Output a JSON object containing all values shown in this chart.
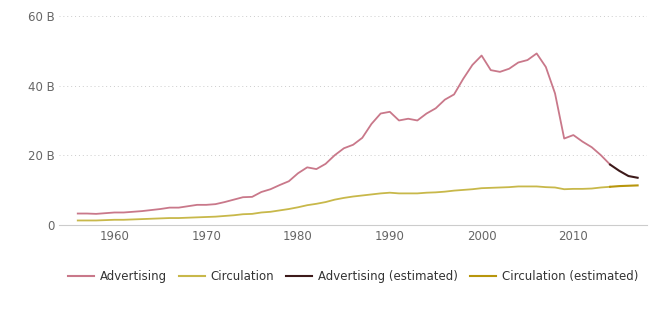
{
  "advertising": {
    "years": [
      1956,
      1957,
      1958,
      1959,
      1960,
      1961,
      1962,
      1963,
      1964,
      1965,
      1966,
      1967,
      1968,
      1969,
      1970,
      1971,
      1972,
      1973,
      1974,
      1975,
      1976,
      1977,
      1978,
      1979,
      1980,
      1981,
      1982,
      1983,
      1984,
      1985,
      1986,
      1987,
      1988,
      1989,
      1990,
      1991,
      1992,
      1993,
      1994,
      1995,
      1996,
      1997,
      1998,
      1999,
      2000,
      2001,
      2002,
      2003,
      2004,
      2005,
      2006,
      2007,
      2008,
      2009,
      2010,
      2011,
      2012,
      2013,
      2014
    ],
    "values": [
      3.2,
      3.2,
      3.1,
      3.3,
      3.5,
      3.5,
      3.7,
      3.9,
      4.2,
      4.5,
      4.9,
      4.9,
      5.3,
      5.7,
      5.7,
      5.9,
      6.5,
      7.2,
      7.9,
      8.0,
      9.4,
      10.2,
      11.4,
      12.5,
      14.8,
      16.5,
      16.0,
      17.5,
      20.0,
      22.0,
      23.0,
      25.0,
      29.0,
      32.0,
      32.5,
      30.0,
      30.5,
      30.0,
      32.0,
      33.5,
      36.0,
      37.5,
      42.0,
      46.0,
      48.7,
      44.5,
      44.0,
      44.9,
      46.7,
      47.4,
      49.3,
      45.4,
      37.8,
      24.8,
      25.8,
      23.9,
      22.3,
      20.0,
      17.3
    ],
    "color": "#c9788a"
  },
  "circulation": {
    "years": [
      1956,
      1957,
      1958,
      1959,
      1960,
      1961,
      1962,
      1963,
      1964,
      1965,
      1966,
      1967,
      1968,
      1969,
      1970,
      1971,
      1972,
      1973,
      1974,
      1975,
      1976,
      1977,
      1978,
      1979,
      1980,
      1981,
      1982,
      1983,
      1984,
      1985,
      1986,
      1987,
      1988,
      1989,
      1990,
      1991,
      1992,
      1993,
      1994,
      1995,
      1996,
      1997,
      1998,
      1999,
      2000,
      2001,
      2002,
      2003,
      2004,
      2005,
      2006,
      2007,
      2008,
      2009,
      2010,
      2011,
      2012,
      2013,
      2014
    ],
    "values": [
      1.2,
      1.2,
      1.2,
      1.3,
      1.4,
      1.4,
      1.5,
      1.6,
      1.7,
      1.8,
      1.9,
      1.9,
      2.0,
      2.1,
      2.2,
      2.3,
      2.5,
      2.7,
      3.0,
      3.1,
      3.5,
      3.7,
      4.1,
      4.5,
      5.0,
      5.6,
      6.0,
      6.5,
      7.2,
      7.7,
      8.1,
      8.4,
      8.7,
      9.0,
      9.2,
      9.0,
      9.0,
      9.0,
      9.2,
      9.3,
      9.5,
      9.8,
      10.0,
      10.2,
      10.5,
      10.6,
      10.7,
      10.8,
      11.0,
      11.0,
      11.0,
      10.8,
      10.7,
      10.2,
      10.3,
      10.3,
      10.4,
      10.7,
      10.9
    ],
    "color": "#c8b84a"
  },
  "advertising_estimated": {
    "years": [
      2014,
      2015,
      2016,
      2017
    ],
    "values": [
      17.3,
      15.5,
      14.0,
      13.5
    ],
    "color": "#3d1a1a"
  },
  "circulation_estimated": {
    "years": [
      2014,
      2015,
      2016,
      2017
    ],
    "values": [
      10.9,
      11.1,
      11.2,
      11.3
    ],
    "color": "#b8960c"
  },
  "ylim": [
    0,
    62
  ],
  "yticks": [
    0,
    20,
    40,
    60
  ],
  "ytick_labels": [
    "0",
    "20 B",
    "40 B",
    "60 B"
  ],
  "xlim": [
    1954,
    2018
  ],
  "xticks": [
    1960,
    1970,
    1980,
    1990,
    2000,
    2010
  ],
  "background_color": "#ffffff",
  "grid_color": "#cccccc",
  "legend_items": [
    "Advertising",
    "Circulation",
    "Advertising (estimated)",
    "Circulation (estimated)"
  ],
  "legend_colors": [
    "#c9788a",
    "#c8b84a",
    "#3d1a1a",
    "#b8960c"
  ]
}
